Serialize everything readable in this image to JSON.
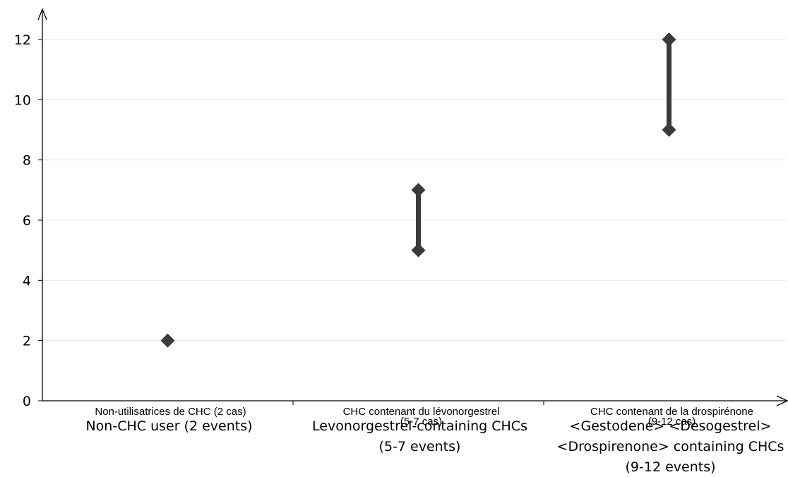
{
  "chart_data": {
    "type": "scatter",
    "title": "",
    "xlabel": "",
    "ylabel": "",
    "ylim": [
      0,
      12.5
    ],
    "yticks": [
      0,
      2,
      4,
      6,
      8,
      10,
      12
    ],
    "yticks_labels": [
      "0",
      "2",
      "4",
      "6",
      "8",
      "10",
      "12"
    ],
    "grid": "horizontal",
    "marker": "diamond",
    "marker_color": "#3a3a3a",
    "categories": [
      {
        "label_fr": "Non-utilisatrices de CHC (2 cas)",
        "label_en": [
          "Non-CHC user (2 events)"
        ],
        "low": 2,
        "high": 2
      },
      {
        "label_fr": [
          "CHC contenant du lévonorgestrel",
          "(5-7 cas)"
        ],
        "label_en": [
          "Levonorgestrel-containing CHCs",
          "(5-7 events)"
        ],
        "low": 5,
        "high": 7
      },
      {
        "label_fr": [
          "CHC contenant de la drospirénone",
          "(9-12 cas)"
        ],
        "label_en": [
          "<Gestodene> <Desogestrel>",
          "<Drospirenone> containing CHCs",
          "(9-12 events)"
        ],
        "low": 9,
        "high": 12
      }
    ]
  }
}
